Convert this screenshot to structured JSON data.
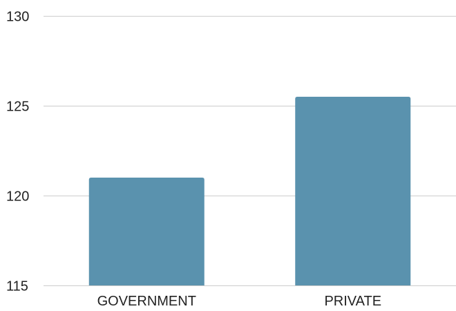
{
  "chart_data": {
    "type": "bar",
    "categories": [
      "GOVERNMENT",
      "PRIVATE"
    ],
    "values": [
      121,
      125.5
    ],
    "ylim": [
      115,
      130
    ],
    "yticks": [
      115,
      120,
      125,
      130
    ],
    "grid": true,
    "bar_color": "#5a92ae",
    "grid_color": "#cccccc"
  }
}
